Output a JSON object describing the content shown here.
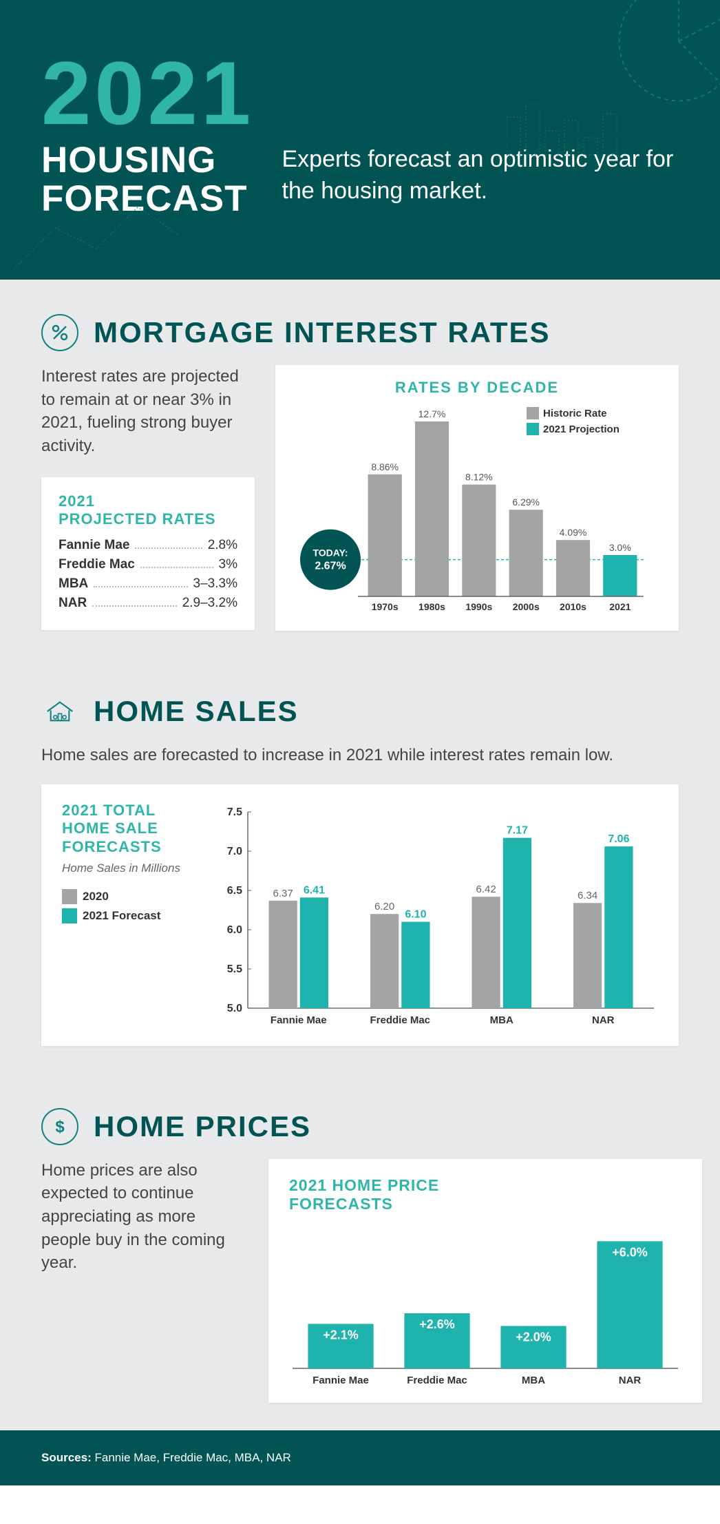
{
  "header": {
    "year": "2021",
    "title_line1": "HOUSING",
    "title_line2": "FORECAST",
    "subtitle": "Experts forecast an optimistic year for the housing market."
  },
  "colors": {
    "dark_teal": "#025454",
    "teal": "#2fb6a9",
    "teal_bar": "#1fb3ad",
    "grey_bar": "#a3a4a5",
    "text": "#444444",
    "bg": "#e8e9ea"
  },
  "mortgage": {
    "title": "MORTGAGE INTEREST RATES",
    "body": "Interest rates are projected to remain at or near 3% in 2021, fueling strong buyer activity.",
    "box_title_l1": "2021",
    "box_title_l2": "PROJECTED RATES",
    "projected": [
      {
        "name": "Fannie Mae",
        "value": "2.8%"
      },
      {
        "name": "Freddie Mac",
        "value": "3%"
      },
      {
        "name": "MBA",
        "value": "3–3.3%"
      },
      {
        "name": "NAR",
        "value": "2.9–3.2%"
      }
    ],
    "chart": {
      "title": "RATES BY DECADE",
      "legend": [
        "Historic Rate",
        "2021 Projection"
      ],
      "today_label": "TODAY:",
      "today_value": "2.67%",
      "categories": [
        "1970s",
        "1980s",
        "1990s",
        "2000s",
        "2010s",
        "2021"
      ],
      "values": [
        8.86,
        12.7,
        8.12,
        6.29,
        4.09,
        3.0
      ],
      "value_labels": [
        "8.86%",
        "12.7%",
        "8.12%",
        "6.29%",
        "4.09%",
        "3.0%"
      ],
      "is_projection": [
        false,
        false,
        false,
        false,
        false,
        true
      ],
      "ymax": 13.5,
      "today_line": 2.67
    }
  },
  "sales": {
    "title": "HOME SALES",
    "body": "Home sales are forecasted to increase in 2021 while interest rates remain low.",
    "panel_title_l1": "2021 TOTAL",
    "panel_title_l2": "HOME SALE",
    "panel_title_l3": "FORECASTS",
    "units": "Home Sales in Millions",
    "legend": [
      "2020",
      "2021 Forecast"
    ],
    "chart": {
      "categories": [
        "Fannie Mae",
        "Freddie Mac",
        "MBA",
        "NAR"
      ],
      "series_2020": [
        6.37,
        6.2,
        6.42,
        6.34
      ],
      "series_2021": [
        6.41,
        6.1,
        7.17,
        7.06
      ],
      "ymin": 5.0,
      "ymax": 7.5,
      "ystep": 0.5
    }
  },
  "prices": {
    "title": "HOME PRICES",
    "body": "Home prices are also expected to continue appreciating as more people buy in the coming year.",
    "chart_title_l1": "2021 HOME PRICE",
    "chart_title_l2": "FORECASTS",
    "chart": {
      "categories": [
        "Fannie Mae",
        "Freddie Mac",
        "MBA",
        "NAR"
      ],
      "values": [
        2.1,
        2.6,
        2.0,
        6.0
      ],
      "labels": [
        "+2.1%",
        "+2.6%",
        "+2.0%",
        "+6.0%"
      ],
      "ymax": 6.5
    }
  },
  "footer": {
    "label": "Sources:",
    "text": "Fannie Mae, Freddie Mac, MBA, NAR"
  }
}
